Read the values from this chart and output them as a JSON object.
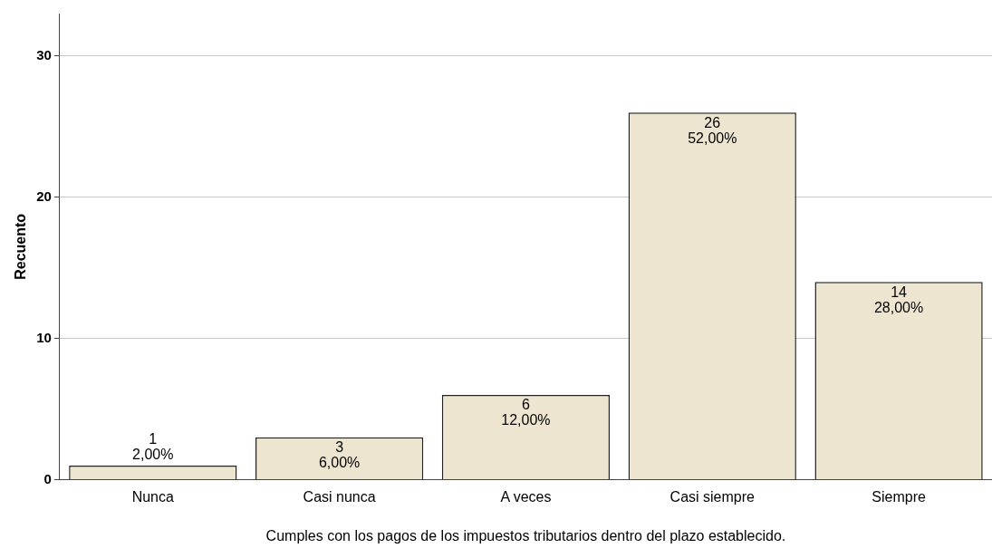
{
  "chart_data": {
    "type": "bar",
    "xlabel": "Cumples con los pagos de los impuestos tributarios dentro del plazo establecido.",
    "ylabel": "Recuento",
    "categories": [
      "Nunca",
      "Casi nunca",
      "A veces",
      "Casi siempre",
      "Siempre"
    ],
    "values": [
      1,
      3,
      6,
      26,
      14
    ],
    "color": "#ede5d0",
    "value_labels": [
      "1\n2,00%",
      "3\n6,00%",
      "6\n12,00%",
      "26\n52,00%",
      "14\n28,00%"
    ],
    "ylim": [
      0,
      33
    ],
    "yticks": [
      0,
      10,
      20,
      30
    ],
    "grid": "y"
  }
}
